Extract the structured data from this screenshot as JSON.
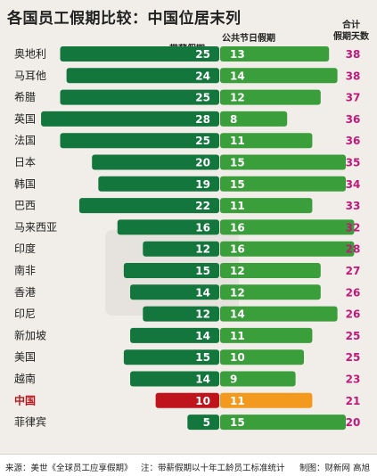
{
  "title": "各国员工假期比较：中国位居末列",
  "headers": {
    "paid_leave": "带薪假期",
    "public_holidays": "公共节日假期",
    "total_line1": "合计",
    "total_line2": "假期天数"
  },
  "colors": {
    "paid_bar": "#13763c",
    "holiday_bar": "#3a9e3a",
    "highlight_paid": "#c0141c",
    "highlight_holiday": "#f39a1e",
    "total_text": "#c2187a"
  },
  "chart_data": {
    "type": "bar",
    "orientation": "horizontal",
    "layout": "diverging-stacked",
    "title": "各国员工假期比较：中国位居末列",
    "categories": [
      "奥地利",
      "马耳他",
      "希腊",
      "英国",
      "法国",
      "日本",
      "韩国",
      "巴西",
      "马来西亚",
      "印度",
      "南非",
      "香港",
      "印尼",
      "新加坡",
      "美国",
      "越南",
      "中国",
      "菲律宾"
    ],
    "highlight": "中国",
    "series": [
      {
        "name": "带薪假期",
        "values": [
          25,
          24,
          25,
          28,
          25,
          20,
          19,
          22,
          16,
          12,
          15,
          14,
          12,
          14,
          15,
          14,
          10,
          5
        ]
      },
      {
        "name": "公共节日假期",
        "values": [
          13,
          14,
          12,
          8,
          11,
          15,
          15,
          11,
          16,
          16,
          12,
          12,
          14,
          11,
          10,
          9,
          11,
          15
        ]
      }
    ],
    "totals_label": "合计假期天数",
    "totals": [
      38,
      38,
      37,
      36,
      36,
      35,
      34,
      33,
      32,
      28,
      27,
      26,
      26,
      25,
      25,
      23,
      21,
      20
    ]
  },
  "footer": {
    "source": "来源：美世《全球员工应享假期》",
    "note": "注：带薪假期以十年工龄员工标准统计",
    "credit": "制图：财新网  高旭"
  }
}
